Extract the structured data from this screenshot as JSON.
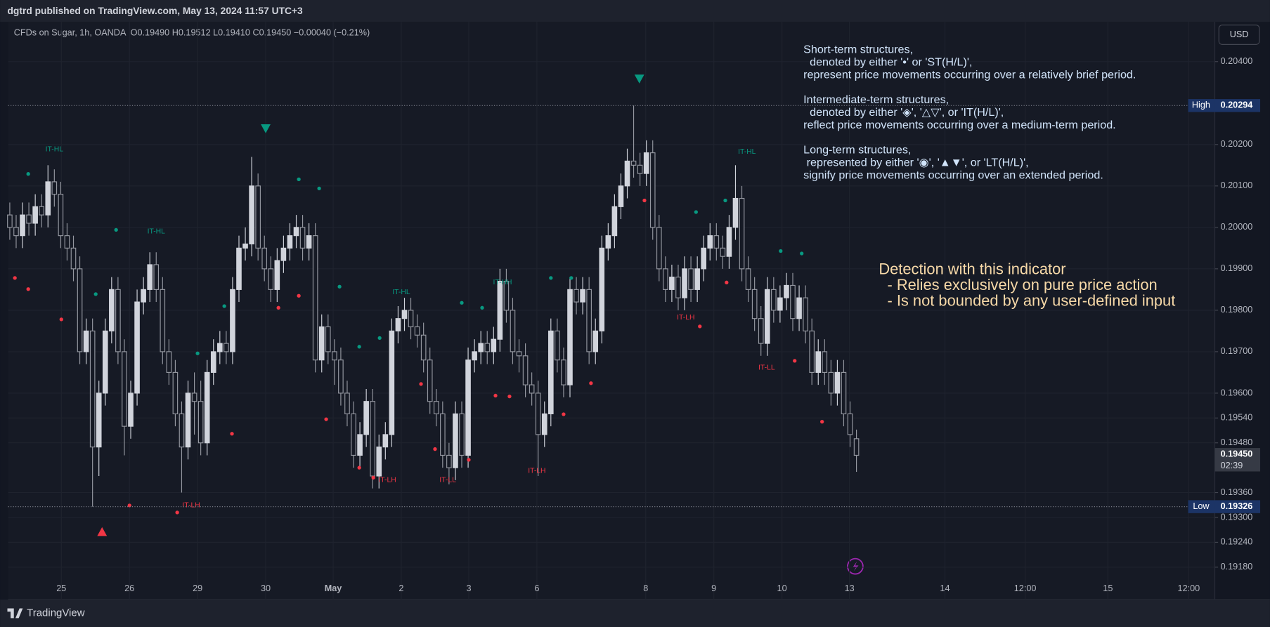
{
  "published": "dgtrd published on TradingView.com, May 13, 2024 11:57 UTC+3",
  "footer": "TradingView",
  "chart_data": {
    "type": "candlestick",
    "symbol": "CFDs on Sugar, 1h, OANDA",
    "ohlc": "O0.19490 H0.19512 L0.19410 C0.19450 −0.00040 (−0.21%)",
    "currency": "USD",
    "up_color": "#d1d4dc",
    "down_color": "#9598a1",
    "candles": [
      [
        0.2003,
        0.2006,
        0.1997,
        0.2
      ],
      [
        0.2,
        0.2003,
        0.1995,
        0.1998
      ],
      [
        0.1998,
        0.2006,
        0.1995,
        0.2003
      ],
      [
        0.2003,
        0.2006,
        0.1998,
        0.2001
      ],
      [
        0.2001,
        0.2008,
        0.1998,
        0.2005
      ],
      [
        0.2005,
        0.2008,
        0.2,
        0.2003
      ],
      [
        0.2003,
        0.2015,
        0.2,
        0.2011
      ],
      [
        0.2011,
        0.2014,
        0.2005,
        0.2008
      ],
      [
        0.2008,
        0.2011,
        0.1995,
        0.1998
      ],
      [
        0.1998,
        0.2001,
        0.1992,
        0.1995
      ],
      [
        0.1995,
        0.1998,
        0.1987,
        0.199
      ],
      [
        0.199,
        0.1993,
        0.1967,
        0.197
      ],
      [
        0.197,
        0.1978,
        0.1967,
        0.1975
      ],
      [
        0.1975,
        0.1978,
        0.19326,
        0.1947
      ],
      [
        0.1947,
        0.1963,
        0.194,
        0.196
      ],
      [
        0.196,
        0.1978,
        0.1957,
        0.1975
      ],
      [
        0.1975,
        0.1988,
        0.1972,
        0.1985
      ],
      [
        0.1985,
        0.1988,
        0.1967,
        0.197
      ],
      [
        0.197,
        0.1973,
        0.1945,
        0.1952
      ],
      [
        0.1952,
        0.1963,
        0.1949,
        0.196
      ],
      [
        0.196,
        0.1985,
        0.1957,
        0.1982
      ],
      [
        0.1982,
        0.1988,
        0.1979,
        0.1985
      ],
      [
        0.1985,
        0.1994,
        0.1982,
        0.1991
      ],
      [
        0.1991,
        0.1994,
        0.1982,
        0.1985
      ],
      [
        0.1985,
        0.1988,
        0.1967,
        0.197
      ],
      [
        0.197,
        0.1973,
        0.1962,
        0.1965
      ],
      [
        0.1965,
        0.1968,
        0.1952,
        0.1955
      ],
      [
        0.1955,
        0.1958,
        0.1936,
        0.1947
      ],
      [
        0.1947,
        0.1963,
        0.1944,
        0.196
      ],
      [
        0.196,
        0.1965,
        0.195,
        0.1958
      ],
      [
        0.1958,
        0.1963,
        0.1945,
        0.1948
      ],
      [
        0.1948,
        0.1968,
        0.1945,
        0.1965
      ],
      [
        0.1965,
        0.1973,
        0.1962,
        0.197
      ],
      [
        0.197,
        0.1975,
        0.1967,
        0.1972
      ],
      [
        0.1972,
        0.1975,
        0.1967,
        0.197
      ],
      [
        0.197,
        0.1988,
        0.1967,
        0.1985
      ],
      [
        0.1985,
        0.1998,
        0.1982,
        0.1995
      ],
      [
        0.1995,
        0.2,
        0.1992,
        0.1996
      ],
      [
        0.1996,
        0.2017,
        0.1993,
        0.201
      ],
      [
        0.201,
        0.2013,
        0.1992,
        0.1995
      ],
      [
        0.1995,
        0.1998,
        0.1987,
        0.199
      ],
      [
        0.199,
        0.1993,
        0.1982,
        0.1985
      ],
      [
        0.1985,
        0.1995,
        0.1982,
        0.1992
      ],
      [
        0.1992,
        0.1998,
        0.1989,
        0.1995
      ],
      [
        0.1995,
        0.2001,
        0.1992,
        0.1998
      ],
      [
        0.1998,
        0.2003,
        0.1995,
        0.2
      ],
      [
        0.2,
        0.2003,
        0.1992,
        0.1995
      ],
      [
        0.1995,
        0.2001,
        0.1992,
        0.1998
      ],
      [
        0.1998,
        0.2001,
        0.1965,
        0.1968
      ],
      [
        0.1968,
        0.1979,
        0.1965,
        0.1976
      ],
      [
        0.1976,
        0.1979,
        0.1967,
        0.197
      ],
      [
        0.197,
        0.1973,
        0.1962,
        0.1968
      ],
      [
        0.1968,
        0.1971,
        0.1957,
        0.196
      ],
      [
        0.196,
        0.1963,
        0.1952,
        0.1955
      ],
      [
        0.1955,
        0.1958,
        0.1942,
        0.1945
      ],
      [
        0.1945,
        0.1953,
        0.1942,
        0.195
      ],
      [
        0.195,
        0.1961,
        0.1947,
        0.1958
      ],
      [
        0.1958,
        0.1961,
        0.1937,
        0.194
      ],
      [
        0.194,
        0.195,
        0.1937,
        0.1947
      ],
      [
        0.1947,
        0.1953,
        0.1944,
        0.195
      ],
      [
        0.195,
        0.1978,
        0.1947,
        0.1975
      ],
      [
        0.1975,
        0.1981,
        0.1972,
        0.1978
      ],
      [
        0.1978,
        0.1983,
        0.1975,
        0.198
      ],
      [
        0.198,
        0.1983,
        0.1973,
        0.1976
      ],
      [
        0.1976,
        0.1979,
        0.1971,
        0.1974
      ],
      [
        0.1974,
        0.1977,
        0.1965,
        0.1968
      ],
      [
        0.1968,
        0.1971,
        0.1955,
        0.1958
      ],
      [
        0.1958,
        0.1961,
        0.1952,
        0.1955
      ],
      [
        0.1955,
        0.1958,
        0.1942,
        0.1945
      ],
      [
        0.1945,
        0.1948,
        0.1938,
        0.1942
      ],
      [
        0.1942,
        0.1958,
        0.1939,
        0.1955
      ],
      [
        0.1955,
        0.1958,
        0.1942,
        0.1945
      ],
      [
        0.1945,
        0.1971,
        0.1942,
        0.1968
      ],
      [
        0.1968,
        0.1973,
        0.1965,
        0.197
      ],
      [
        0.197,
        0.1975,
        0.1967,
        0.1972
      ],
      [
        0.1972,
        0.1975,
        0.1967,
        0.197
      ],
      [
        0.197,
        0.1976,
        0.1967,
        0.1973
      ],
      [
        0.1973,
        0.199,
        0.197,
        0.1987
      ],
      [
        0.1987,
        0.199,
        0.1977,
        0.198
      ],
      [
        0.198,
        0.1983,
        0.1967,
        0.197
      ],
      [
        0.197,
        0.1973,
        0.1965,
        0.1969
      ],
      [
        0.1969,
        0.1972,
        0.1959,
        0.1962
      ],
      [
        0.1962,
        0.1965,
        0.1957,
        0.196
      ],
      [
        0.196,
        0.1963,
        0.194,
        0.195
      ],
      [
        0.195,
        0.1958,
        0.1947,
        0.1955
      ],
      [
        0.1955,
        0.1978,
        0.1952,
        0.1975
      ],
      [
        0.1975,
        0.1978,
        0.1965,
        0.1968
      ],
      [
        0.1968,
        0.1971,
        0.1959,
        0.1962
      ],
      [
        0.1962,
        0.1988,
        0.1959,
        0.1985
      ],
      [
        0.1985,
        0.1988,
        0.1979,
        0.1982
      ],
      [
        0.1982,
        0.1988,
        0.1979,
        0.1985
      ],
      [
        0.1985,
        0.1988,
        0.1967,
        0.197
      ],
      [
        0.197,
        0.1978,
        0.1967,
        0.1975
      ],
      [
        0.1975,
        0.1998,
        0.1972,
        0.1995
      ],
      [
        0.1995,
        0.2001,
        0.1992,
        0.1998
      ],
      [
        0.1998,
        0.2008,
        0.1995,
        0.2005
      ],
      [
        0.2005,
        0.2013,
        0.2002,
        0.201
      ],
      [
        0.201,
        0.2019,
        0.2007,
        0.2016
      ],
      [
        0.2016,
        0.20294,
        0.2012,
        0.2015
      ],
      [
        0.2015,
        0.2018,
        0.201,
        0.2013
      ],
      [
        0.2013,
        0.2021,
        0.201,
        0.2018
      ],
      [
        0.2018,
        0.2021,
        0.1997,
        0.2
      ],
      [
        0.2,
        0.2003,
        0.1987,
        0.199
      ],
      [
        0.199,
        0.1993,
        0.1982,
        0.1985
      ],
      [
        0.1985,
        0.1991,
        0.1982,
        0.1988
      ],
      [
        0.1988,
        0.1991,
        0.198,
        0.1983
      ],
      [
        0.1983,
        0.1993,
        0.198,
        0.199
      ],
      [
        0.199,
        0.1993,
        0.1982,
        0.1985
      ],
      [
        0.1985,
        0.1993,
        0.1982,
        0.199
      ],
      [
        0.199,
        0.1998,
        0.1987,
        0.1995
      ],
      [
        0.1995,
        0.2001,
        0.1992,
        0.1998
      ],
      [
        0.1998,
        0.2001,
        0.1992,
        0.1995
      ],
      [
        0.1995,
        0.1998,
        0.199,
        0.1993
      ],
      [
        0.1993,
        0.2003,
        0.199,
        0.2
      ],
      [
        0.2,
        0.2015,
        0.1997,
        0.2007
      ],
      [
        0.2007,
        0.201,
        0.1987,
        0.199
      ],
      [
        0.199,
        0.1993,
        0.1982,
        0.1985
      ],
      [
        0.1985,
        0.1988,
        0.1975,
        0.1978
      ],
      [
        0.1978,
        0.1981,
        0.1969,
        0.1972
      ],
      [
        0.1972,
        0.1988,
        0.1969,
        0.1985
      ],
      [
        0.1985,
        0.1988,
        0.1977,
        0.198
      ],
      [
        0.198,
        0.1986,
        0.1977,
        0.1983
      ],
      [
        0.1983,
        0.1989,
        0.198,
        0.1986
      ],
      [
        0.1986,
        0.1989,
        0.1975,
        0.1978
      ],
      [
        0.1978,
        0.1986,
        0.1975,
        0.1983
      ],
      [
        0.1983,
        0.1986,
        0.1972,
        0.1975
      ],
      [
        0.1975,
        0.1978,
        0.1962,
        0.1965
      ],
      [
        0.1965,
        0.1973,
        0.1962,
        0.197
      ],
      [
        0.197,
        0.1973,
        0.1962,
        0.1965
      ],
      [
        0.1965,
        0.1968,
        0.1957,
        0.196
      ],
      [
        0.196,
        0.1968,
        0.1957,
        0.1965
      ],
      [
        0.1965,
        0.1968,
        0.1952,
        0.1955
      ],
      [
        0.1955,
        0.1958,
        0.1947,
        0.195
      ],
      [
        0.1949,
        0.19512,
        0.1941,
        0.1945
      ]
    ],
    "xlim": [
      -0.25,
      189.3
    ],
    "xticks": [
      {
        "value": 8.1,
        "label": "25"
      },
      {
        "value": 18.8,
        "label": "26"
      },
      {
        "value": 29.5,
        "label": "29"
      },
      {
        "value": 40.2,
        "label": "30"
      },
      {
        "value": 50.8,
        "label": "May"
      },
      {
        "value": 61.5,
        "label": "2"
      },
      {
        "value": 72.1,
        "label": "3"
      },
      {
        "value": 82.8,
        "label": "6"
      },
      {
        "value": 99.9,
        "label": "8"
      },
      {
        "value": 110.6,
        "label": "9"
      },
      {
        "value": 121.3,
        "label": "10"
      },
      {
        "value": 131.9,
        "label": "13"
      },
      {
        "value": 146.9,
        "label": "14"
      },
      {
        "value": 159.5,
        "label": "12:00"
      },
      {
        "value": 172.5,
        "label": "15"
      },
      {
        "value": 185.2,
        "label": "12:00"
      }
    ],
    "ylim": [
      0.19102,
      0.20496
    ],
    "yticks": [
      {
        "value": 0.204,
        "label": "0.20400"
      },
      {
        "value": 0.202,
        "label": "0.20200"
      },
      {
        "value": 0.201,
        "label": "0.20100"
      },
      {
        "value": 0.2,
        "label": "0.20000"
      },
      {
        "value": 0.199,
        "label": "0.19900"
      },
      {
        "value": 0.198,
        "label": "0.19800"
      },
      {
        "value": 0.197,
        "label": "0.19700"
      },
      {
        "value": 0.196,
        "label": "0.19600"
      },
      {
        "value": 0.1954,
        "label": "0.19540"
      },
      {
        "value": 0.1948,
        "label": "0.19480"
      },
      {
        "value": 0.1936,
        "label": "0.19360"
      },
      {
        "value": 0.193,
        "label": "0.19300"
      },
      {
        "value": 0.1924,
        "label": "0.19240"
      },
      {
        "value": 0.1918,
        "label": "0.19180"
      }
    ],
    "grid": true,
    "high": {
      "label": "High",
      "value": 0.20294
    },
    "low": {
      "label": "Low",
      "value": 0.19326
    },
    "last": {
      "value": 0.1945,
      "label": "0.19450",
      "countdown": "02:39"
    },
    "markers": [
      {
        "x": 2.9,
        "y": 0.20129,
        "color": "#089981"
      },
      {
        "x": 16.7,
        "y": 0.19994,
        "color": "#089981"
      },
      {
        "x": 13.5,
        "y": 0.19839,
        "color": "#089981"
      },
      {
        "x": 29.5,
        "y": 0.19696,
        "color": "#089981"
      },
      {
        "x": 33.7,
        "y": 0.1981,
        "color": "#089981"
      },
      {
        "x": 45.4,
        "y": 0.20116,
        "color": "#089981"
      },
      {
        "x": 48.6,
        "y": 0.20094,
        "color": "#089981"
      },
      {
        "x": 51.8,
        "y": 0.19857,
        "color": "#089981"
      },
      {
        "x": 54.9,
        "y": 0.19712,
        "color": "#089981"
      },
      {
        "x": 58.1,
        "y": 0.19733,
        "color": "#089981"
      },
      {
        "x": 71,
        "y": 0.19818,
        "color": "#089981"
      },
      {
        "x": 74.2,
        "y": 0.19806,
        "color": "#089981"
      },
      {
        "x": 85,
        "y": 0.19878,
        "color": "#089981"
      },
      {
        "x": 88.2,
        "y": 0.19878,
        "color": "#089981"
      },
      {
        "x": 107.8,
        "y": 0.20037,
        "color": "#089981"
      },
      {
        "x": 112.4,
        "y": 0.20065,
        "color": "#089981"
      },
      {
        "x": 121.1,
        "y": 0.19943,
        "color": "#089981"
      },
      {
        "x": 124.4,
        "y": 0.19937,
        "color": "#089981"
      },
      {
        "x": 0.8,
        "y": 0.19878,
        "color": "#f23645"
      },
      {
        "x": 2.9,
        "y": 0.19851,
        "color": "#f23645"
      },
      {
        "x": 8.1,
        "y": 0.19778,
        "color": "#f23645"
      },
      {
        "x": 18.8,
        "y": 0.19329,
        "color": "#f23645"
      },
      {
        "x": 26.3,
        "y": 0.19312,
        "color": "#f23645"
      },
      {
        "x": 34.9,
        "y": 0.19502,
        "color": "#f23645"
      },
      {
        "x": 42.2,
        "y": 0.19806,
        "color": "#f23645"
      },
      {
        "x": 45.4,
        "y": 0.19835,
        "color": "#f23645"
      },
      {
        "x": 49.7,
        "y": 0.19537,
        "color": "#f23645"
      },
      {
        "x": 54.9,
        "y": 0.1942,
        "color": "#f23645"
      },
      {
        "x": 57.1,
        "y": 0.19396,
        "color": "#f23645"
      },
      {
        "x": 64.6,
        "y": 0.19622,
        "color": "#f23645"
      },
      {
        "x": 66.8,
        "y": 0.19465,
        "color": "#f23645"
      },
      {
        "x": 72.1,
        "y": 0.19439,
        "color": "#f23645"
      },
      {
        "x": 76.3,
        "y": 0.19594,
        "color": "#f23645"
      },
      {
        "x": 78.5,
        "y": 0.19592,
        "color": "#f23645"
      },
      {
        "x": 87,
        "y": 0.19549,
        "color": "#f23645"
      },
      {
        "x": 91.3,
        "y": 0.19624,
        "color": "#f23645"
      },
      {
        "x": 99.7,
        "y": 0.20065,
        "color": "#f23645"
      },
      {
        "x": 108.4,
        "y": 0.19761,
        "color": "#f23645"
      },
      {
        "x": 112.6,
        "y": 0.19867,
        "color": "#f23645"
      },
      {
        "x": 123.3,
        "y": 0.19678,
        "color": "#f23645"
      },
      {
        "x": 127.6,
        "y": 0.19531,
        "color": "#f23645"
      }
    ],
    "triangles": [
      {
        "x": 40.2,
        "y": 0.20239,
        "direction": "down",
        "color": "#089981"
      },
      {
        "x": 98.9,
        "y": 0.20359,
        "direction": "down",
        "color": "#089981"
      },
      {
        "x": 14.5,
        "y": 0.19265,
        "direction": "up",
        "color": "#f23645"
      }
    ],
    "annotations": [
      {
        "text": "IT-HL",
        "x": 7,
        "y": 0.20188,
        "color": "#089981"
      },
      {
        "x": 23,
        "y": 0.1999,
        "text": "IT-HL",
        "color": "#089981"
      },
      {
        "text": "IT-HL",
        "x": 61.5,
        "y": 0.19843,
        "color": "#089981"
      },
      {
        "text": "IT-HH",
        "x": 77.4,
        "y": 0.19867,
        "color": "#089981"
      },
      {
        "text": "IT-HL",
        "x": 115.8,
        "y": 0.20182,
        "color": "#089981"
      },
      {
        "text": "IT-LH",
        "x": 28.5,
        "y": 0.19329,
        "color": "#f23645"
      },
      {
        "text": "IT-LH",
        "x": 59.3,
        "y": 0.1939,
        "color": "#f23645"
      },
      {
        "text": "IT-LL",
        "x": 68.8,
        "y": 0.1939,
        "color": "#f23645"
      },
      {
        "text": "IT-LH",
        "x": 82.8,
        "y": 0.19412,
        "color": "#f23645"
      },
      {
        "text": "IT-LH",
        "x": 106.2,
        "y": 0.19782,
        "color": "#f23645"
      },
      {
        "text": "IT-LL",
        "x": 118.9,
        "y": 0.19661,
        "color": "#f23645"
      }
    ],
    "notes": [
      [
        "Short-term structures,",
        "  denoted by either '•' or 'ST(H/L)',",
        "represent price movements occurring over a relatively brief period."
      ],
      [
        "Intermediate-term structures,",
        "  denoted by either '◈', '△▽', or 'IT(H/L)',",
        "reflect price movements occurring over a medium-term period."
      ],
      [
        "Long-term structures,",
        " represented by either '◉', '▲▼', or 'LT(H/L)',",
        "signify price movements occurring over an extended period."
      ]
    ],
    "highlight": [
      "Detection with this indicator",
      "  - Relies exclusively on pure price action",
      "  - Is not bounded by any user-defined input"
    ]
  }
}
